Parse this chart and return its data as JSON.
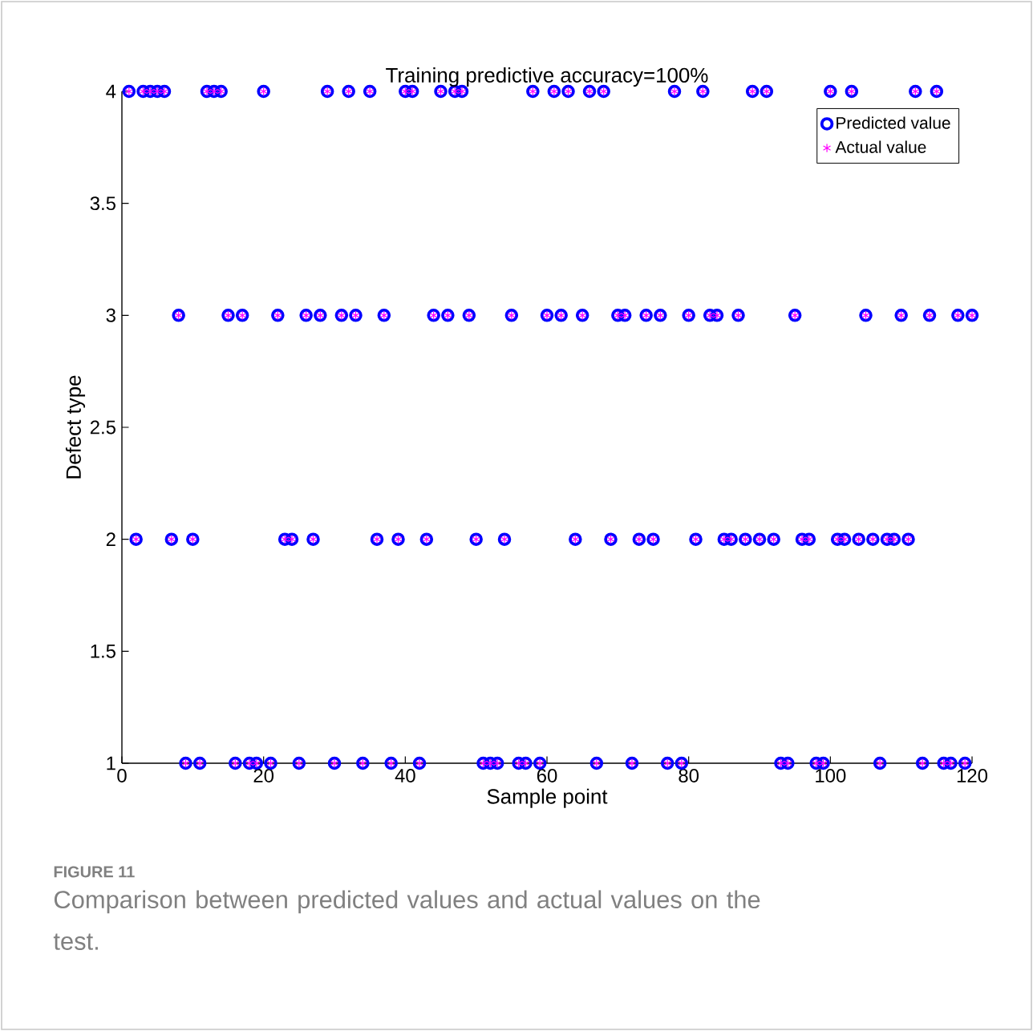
{
  "chart_data": {
    "type": "scatter",
    "title": "Training predictive accuracy=100%",
    "xlabel": "Sample point",
    "ylabel": "Defect type",
    "annotations": [
      "FIGURE 11",
      "Comparison between predicted values and actual values on the test."
    ],
    "xlim": [
      0,
      120
    ],
    "ylim": [
      1,
      4
    ],
    "xticks": [
      0,
      20,
      40,
      60,
      80,
      100,
      120
    ],
    "yticks": [
      1,
      1.5,
      2,
      2.5,
      3,
      3.5,
      4
    ],
    "grid": false,
    "legend": "top right",
    "series": [
      {
        "name": "Predicted value",
        "color": "#0000ff",
        "marker": "circle",
        "x": [
          1,
          2,
          3,
          4,
          5,
          6,
          7,
          8,
          9,
          10,
          11,
          12,
          13,
          14,
          15,
          16,
          17,
          18,
          19,
          20,
          21,
          22,
          23,
          24,
          25,
          26,
          27,
          28,
          29,
          30,
          31,
          32,
          33,
          34,
          35,
          36,
          37,
          38,
          39,
          40,
          41,
          42,
          43,
          44,
          45,
          46,
          47,
          48,
          49,
          50,
          51,
          52,
          53,
          54,
          55,
          56,
          57,
          58,
          59,
          60,
          61,
          62,
          63,
          64,
          65,
          66,
          67,
          68,
          69,
          70,
          71,
          72,
          73,
          74,
          75,
          76,
          77,
          78,
          79,
          80,
          81,
          82,
          83,
          84,
          85,
          86,
          87,
          88,
          89,
          90,
          91,
          92,
          93,
          94,
          95,
          96,
          97,
          98,
          99,
          100,
          101,
          102,
          103,
          104,
          105,
          106,
          107,
          108,
          109,
          110,
          111,
          112,
          113,
          114,
          115,
          116,
          117,
          118,
          119,
          120
        ],
        "values": [
          4,
          2,
          4,
          4,
          4,
          4,
          2,
          3,
          1,
          2,
          1,
          4,
          4,
          4,
          3,
          1,
          3,
          1,
          1,
          4,
          1,
          3,
          2,
          2,
          1,
          3,
          2,
          3,
          4,
          1,
          3,
          4,
          3,
          1,
          4,
          2,
          3,
          1,
          2,
          4,
          4,
          1,
          2,
          3,
          4,
          3,
          4,
          4,
          3,
          2,
          1,
          1,
          1,
          2,
          3,
          1,
          1,
          4,
          1,
          3,
          4,
          3,
          4,
          2,
          3,
          4,
          1,
          4,
          2,
          3,
          3,
          1,
          2,
          3,
          2,
          3,
          1,
          4,
          1,
          3,
          2,
          4,
          3,
          3,
          2,
          2,
          3,
          2,
          4,
          2,
          4,
          2,
          1,
          1,
          3,
          2,
          2,
          1,
          1,
          4,
          2,
          2,
          4,
          2,
          3,
          2,
          1,
          2,
          2,
          3,
          2,
          4,
          1,
          3,
          4,
          1,
          1,
          3,
          1,
          3
        ]
      },
      {
        "name": "Actual value",
        "color": "#ff00ff",
        "marker": "cross",
        "x": [
          1,
          2,
          3,
          4,
          5,
          6,
          7,
          8,
          9,
          10,
          11,
          12,
          13,
          14,
          15,
          16,
          17,
          18,
          19,
          20,
          21,
          22,
          23,
          24,
          25,
          26,
          27,
          28,
          29,
          30,
          31,
          32,
          33,
          34,
          35,
          36,
          37,
          38,
          39,
          40,
          41,
          42,
          43,
          44,
          45,
          46,
          47,
          48,
          49,
          50,
          51,
          52,
          53,
          54,
          55,
          56,
          57,
          58,
          59,
          60,
          61,
          62,
          63,
          64,
          65,
          66,
          67,
          68,
          69,
          70,
          71,
          72,
          73,
          74,
          75,
          76,
          77,
          78,
          79,
          80,
          81,
          82,
          83,
          84,
          85,
          86,
          87,
          88,
          89,
          90,
          91,
          92,
          93,
          94,
          95,
          96,
          97,
          98,
          99,
          100,
          101,
          102,
          103,
          104,
          105,
          106,
          107,
          108,
          109,
          110,
          111,
          112,
          113,
          114,
          115,
          116,
          117,
          118,
          119,
          120
        ],
        "values": [
          4,
          2,
          4,
          4,
          4,
          4,
          2,
          3,
          1,
          2,
          1,
          4,
          4,
          4,
          3,
          1,
          3,
          1,
          1,
          4,
          1,
          3,
          2,
          2,
          1,
          3,
          2,
          3,
          4,
          1,
          3,
          4,
          3,
          1,
          4,
          2,
          3,
          1,
          2,
          4,
          4,
          1,
          2,
          3,
          4,
          3,
          4,
          4,
          3,
          2,
          1,
          1,
          1,
          2,
          3,
          1,
          1,
          4,
          1,
          3,
          4,
          3,
          4,
          2,
          3,
          4,
          1,
          4,
          2,
          3,
          3,
          1,
          2,
          3,
          2,
          3,
          1,
          4,
          1,
          3,
          2,
          4,
          3,
          3,
          2,
          2,
          3,
          2,
          4,
          2,
          4,
          2,
          1,
          1,
          3,
          2,
          2,
          1,
          1,
          4,
          2,
          2,
          4,
          2,
          3,
          2,
          1,
          2,
          2,
          3,
          2,
          4,
          1,
          3,
          4,
          1,
          1,
          3,
          1,
          3
        ]
      }
    ]
  }
}
